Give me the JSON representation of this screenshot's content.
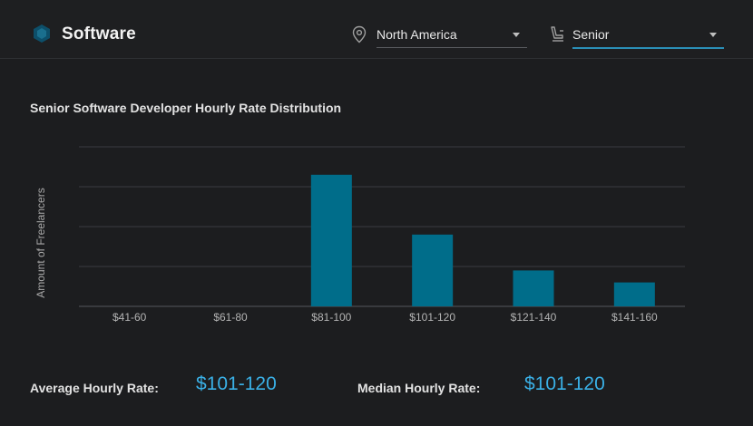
{
  "header": {
    "title": "Software",
    "region": {
      "value": "North America",
      "icon": "map-pin-icon"
    },
    "level": {
      "value": "Senior",
      "icon": "seat-icon"
    }
  },
  "colors": {
    "bar": "#006d8a",
    "accent": "#3ab0e6",
    "background": "#1c1d1f"
  },
  "chart_data": {
    "type": "bar",
    "title": "Senior Software Developer Hourly Rate Distribution",
    "xlabel": "",
    "ylabel": "Amount of Freelancers",
    "categories": [
      "$41-60",
      "$61-80",
      "$81-100",
      "$101-120",
      "$121-140",
      "$141-160"
    ],
    "values": [
      0,
      0,
      33,
      18,
      9,
      6
    ],
    "ylim": [
      0,
      40
    ],
    "grid": true
  },
  "stats": {
    "average_label": "Average Hourly Rate:",
    "average_value": "$101-120",
    "median_label": "Median Hourly Rate:",
    "median_value": "$101-120"
  }
}
